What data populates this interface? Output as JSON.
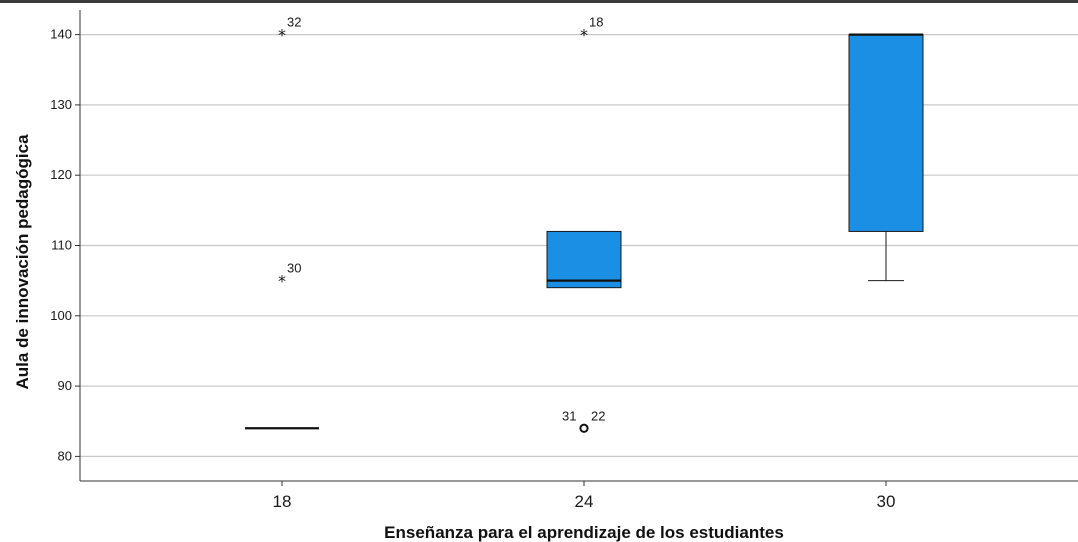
{
  "chart_data": {
    "type": "boxplot",
    "xlabel": "Enseñanza para el aprendizaje de los estudiantes",
    "ylabel": "Aula de innovación pedagógica",
    "categories": [
      "18",
      "24",
      "30"
    ],
    "ylim": [
      76.5,
      143.5
    ],
    "yticks": [
      80,
      90,
      100,
      110,
      120,
      130,
      140
    ],
    "grid": true,
    "box_color": "#1a8fe3",
    "boxes": [
      {
        "category": "18",
        "q1": 84,
        "median": 84,
        "q3": 84,
        "whisker_low": 84,
        "whisker_high": 84
      },
      {
        "category": "24",
        "q1": 104,
        "median": 105,
        "q3": 112,
        "whisker_low": 104,
        "whisker_high": 112
      },
      {
        "category": "30",
        "q1": 112,
        "median": 140,
        "q3": 140,
        "whisker_low": 105,
        "whisker_high": 140
      }
    ],
    "outliers": [
      {
        "category": "18",
        "value": 140,
        "marker": "star",
        "label": "32"
      },
      {
        "category": "18",
        "value": 105,
        "marker": "star",
        "label": "30"
      },
      {
        "category": "24",
        "value": 140,
        "marker": "star",
        "label": "18"
      },
      {
        "category": "24",
        "value": 84,
        "marker": "circle",
        "labels": [
          "31",
          "22"
        ]
      }
    ]
  }
}
